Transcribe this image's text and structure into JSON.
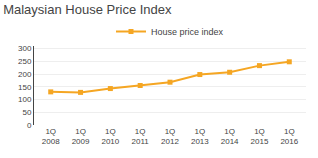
{
  "chart_data": {
    "type": "line",
    "title": "Malaysian House Price Index",
    "categories": [
      "1Q\n2008",
      "1Q\n2009",
      "1Q\n2010",
      "1Q\n2011",
      "1Q\n2012",
      "1Q\n2013",
      "1Q\n2014",
      "1Q\n2015",
      "1Q\n2016"
    ],
    "series": [
      {
        "name": "House price index",
        "color": "#F5A623",
        "marker": "square",
        "values": [
          130,
          128,
          143,
          155,
          168,
          198,
          207,
          233,
          248
        ]
      }
    ],
    "ylim": [
      0,
      310
    ],
    "yticks": [
      0,
      50,
      100,
      150,
      200,
      250,
      300
    ],
    "grid": true,
    "legend": "top"
  }
}
